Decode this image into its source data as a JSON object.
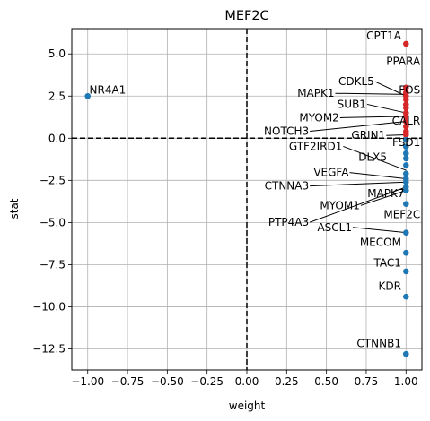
{
  "chart_data": {
    "type": "scatter",
    "title": "MEF2C",
    "xlabel": "weight",
    "ylabel": "stat",
    "xlim": [
      -1.1,
      1.1
    ],
    "ylim": [
      -13.75,
      6.5
    ],
    "xticks": [
      -1.0,
      -0.75,
      -0.5,
      -0.25,
      0.0,
      0.25,
      0.5,
      0.75,
      1.0
    ],
    "xtick_labels": [
      "−1.00",
      "−0.75",
      "−0.50",
      "−0.25",
      "0.00",
      "0.25",
      "0.50",
      "0.75",
      "1.00"
    ],
    "yticks": [
      5.0,
      2.5,
      0.0,
      -2.5,
      -5.0,
      -7.5,
      -10.0,
      -12.5
    ],
    "ytick_labels": [
      "5.0",
      "2.5",
      "0.0",
      "−2.5",
      "−5.0",
      "−7.5",
      "−10.0",
      "−12.5"
    ],
    "grid": true,
    "reference_lines": {
      "x": 0,
      "y": 0,
      "style": "dashed"
    },
    "colors": {
      "positive": "#d62728",
      "negative": "#1f77b4"
    },
    "points": [
      {
        "x": -1.0,
        "y": 2.5,
        "color": "negative"
      },
      {
        "x": 1.0,
        "y": 5.6,
        "color": "positive"
      },
      {
        "x": 1.0,
        "y": 3.0,
        "color": "positive"
      },
      {
        "x": 1.0,
        "y": 2.7,
        "color": "positive"
      },
      {
        "x": 1.0,
        "y": 2.5,
        "color": "positive"
      },
      {
        "x": 1.0,
        "y": 2.3,
        "color": "positive"
      },
      {
        "x": 1.0,
        "y": 2.0,
        "color": "positive"
      },
      {
        "x": 1.0,
        "y": 1.8,
        "color": "positive"
      },
      {
        "x": 1.0,
        "y": 1.5,
        "color": "positive"
      },
      {
        "x": 1.0,
        "y": 1.3,
        "color": "positive"
      },
      {
        "x": 1.0,
        "y": 1.0,
        "color": "positive"
      },
      {
        "x": 1.0,
        "y": 0.7,
        "color": "positive"
      },
      {
        "x": 1.0,
        "y": 0.4,
        "color": "positive"
      },
      {
        "x": 1.0,
        "y": 0.2,
        "color": "positive"
      },
      {
        "x": 1.0,
        "y": -0.1,
        "color": "negative"
      },
      {
        "x": 1.0,
        "y": -0.5,
        "color": "negative"
      },
      {
        "x": 1.0,
        "y": -0.9,
        "color": "negative"
      },
      {
        "x": 1.0,
        "y": -1.2,
        "color": "negative"
      },
      {
        "x": 1.0,
        "y": -1.6,
        "color": "negative"
      },
      {
        "x": 1.0,
        "y": -2.1,
        "color": "negative"
      },
      {
        "x": 1.0,
        "y": -2.4,
        "color": "negative"
      },
      {
        "x": 1.0,
        "y": -2.6,
        "color": "negative"
      },
      {
        "x": 1.0,
        "y": -2.9,
        "color": "negative"
      },
      {
        "x": 1.0,
        "y": -3.1,
        "color": "negative"
      },
      {
        "x": 1.0,
        "y": -3.9,
        "color": "negative"
      },
      {
        "x": 1.0,
        "y": -5.6,
        "color": "negative"
      },
      {
        "x": 1.0,
        "y": -6.8,
        "color": "negative"
      },
      {
        "x": 1.0,
        "y": -7.9,
        "color": "negative"
      },
      {
        "x": 1.0,
        "y": -9.4,
        "color": "negative"
      },
      {
        "x": 1.0,
        "y": -12.8,
        "color": "negative"
      }
    ],
    "annotations": [
      {
        "text": "NR4A1",
        "x": -0.99,
        "y": 2.65,
        "anchor": "start"
      },
      {
        "text": "CPT1A",
        "x": 0.97,
        "y": 5.85,
        "anchor": "end"
      },
      {
        "text": "PPARA",
        "x": 1.09,
        "y": 4.35,
        "anchor": "end"
      },
      {
        "text": "CDKL5",
        "x": 0.8,
        "y": 3.15,
        "anchor": "end",
        "line_to": [
          1.0,
          2.5
        ]
      },
      {
        "text": "MAPK1",
        "x": 0.55,
        "y": 2.45,
        "anchor": "end",
        "line_to": [
          1.0,
          2.6
        ]
      },
      {
        "text": "FOS",
        "x": 1.09,
        "y": 2.65,
        "anchor": "end"
      },
      {
        "text": "SUB1",
        "x": 0.75,
        "y": 1.8,
        "anchor": "end",
        "line_to": [
          1.0,
          1.5
        ]
      },
      {
        "text": "MYOM2",
        "x": 0.58,
        "y": 1.0,
        "anchor": "end",
        "line_to": [
          1.0,
          1.3
        ]
      },
      {
        "text": "CALR",
        "x": 1.09,
        "y": 0.8,
        "anchor": "end"
      },
      {
        "text": "NOTCH3",
        "x": 0.39,
        "y": 0.2,
        "anchor": "end",
        "line_to": [
          1.0,
          1.0
        ]
      },
      {
        "text": "GRIN1",
        "x": 0.87,
        "y": -0.05,
        "anchor": "end",
        "line_to": [
          1.0,
          0.2
        ]
      },
      {
        "text": "FSD1",
        "x": 1.09,
        "y": -0.45,
        "anchor": "end"
      },
      {
        "text": "GTF2IRD1",
        "x": 0.6,
        "y": -0.7,
        "anchor": "end",
        "line_to": [
          1.0,
          -1.9
        ]
      },
      {
        "text": "DLX5",
        "x": 0.88,
        "y": -1.35,
        "anchor": "end"
      },
      {
        "text": "VEGFA",
        "x": 0.64,
        "y": -2.25,
        "anchor": "end",
        "line_to": [
          1.0,
          -2.4
        ]
      },
      {
        "text": "CTNNA3",
        "x": 0.39,
        "y": -3.05,
        "anchor": "end",
        "line_to": [
          1.0,
          -2.6
        ]
      },
      {
        "text": "MAPK7",
        "x": 0.99,
        "y": -3.5,
        "anchor": "end"
      },
      {
        "text": "MYOM1",
        "x": 0.71,
        "y": -4.2,
        "anchor": "end",
        "line_to": [
          1.0,
          -3.1
        ]
      },
      {
        "text": "MEF2C",
        "x": 1.09,
        "y": -4.75,
        "anchor": "end"
      },
      {
        "text": "PTP4A3",
        "x": 0.39,
        "y": -5.2,
        "anchor": "end",
        "line_to": [
          1.0,
          -2.9
        ]
      },
      {
        "text": "ASCL1",
        "x": 0.66,
        "y": -5.5,
        "anchor": "end",
        "line_to": [
          1.0,
          -5.6
        ]
      },
      {
        "text": "MECOM",
        "x": 0.97,
        "y": -6.4,
        "anchor": "end"
      },
      {
        "text": "TAC1",
        "x": 0.97,
        "y": -7.6,
        "anchor": "end"
      },
      {
        "text": "KDR",
        "x": 0.97,
        "y": -9.0,
        "anchor": "end"
      },
      {
        "text": "CTNNB1",
        "x": 0.97,
        "y": -12.4,
        "anchor": "end"
      }
    ]
  }
}
